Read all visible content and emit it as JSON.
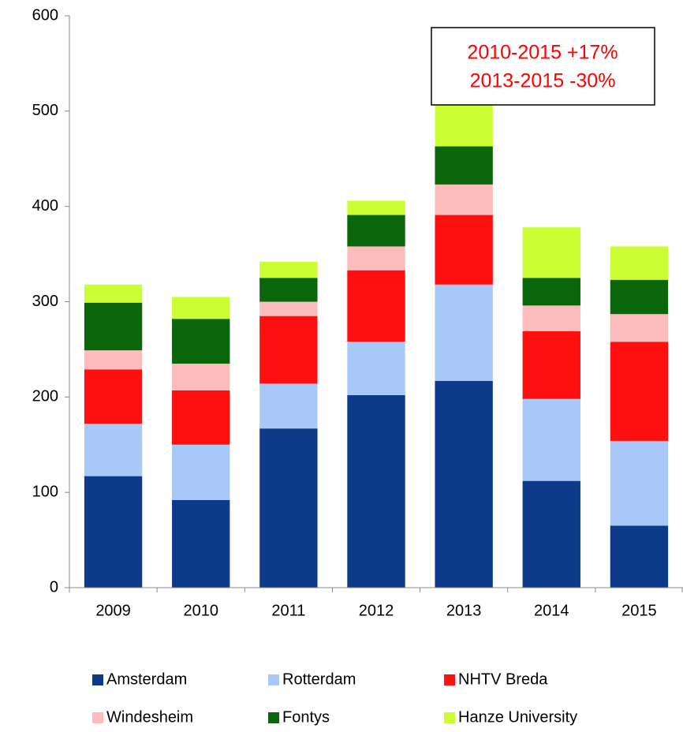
{
  "chart_data": {
    "type": "stacked_bar",
    "categories": [
      "2009",
      "2010",
      "2011",
      "2012",
      "2013",
      "2014",
      "2015"
    ],
    "series": [
      {
        "name": "Amsterdam",
        "color": "#0d3a8a",
        "values": [
          117,
          92,
          167,
          202,
          217,
          112,
          65
        ]
      },
      {
        "name": "Rotterdam",
        "color": "#a8c8f8",
        "values": [
          55,
          58,
          47,
          56,
          101,
          86,
          89
        ]
      },
      {
        "name": "NHTV Breda",
        "color": "#ff1010",
        "values": [
          57,
          57,
          71,
          75,
          73,
          71,
          104
        ]
      },
      {
        "name": "Windesheim",
        "color": "#fcbcbc",
        "values": [
          20,
          28,
          15,
          25,
          32,
          27,
          29
        ]
      },
      {
        "name": "Fontys",
        "color": "#0a660a",
        "values": [
          50,
          47,
          25,
          33,
          40,
          29,
          36
        ]
      },
      {
        "name": "Hanze University",
        "color": "#ccff33",
        "values": [
          19,
          23,
          17,
          15,
          47,
          53,
          35
        ]
      }
    ],
    "ylim": [
      0,
      600
    ],
    "yticks": [
      0,
      100,
      200,
      300,
      400,
      500,
      600
    ],
    "annotation": [
      "2010-2015 +17%",
      "2013-2015 -30%"
    ]
  }
}
